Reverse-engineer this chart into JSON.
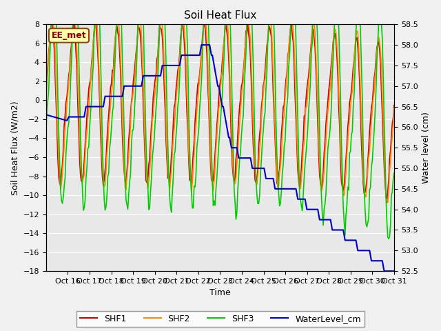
{
  "title": "Soil Heat Flux",
  "ylabel_left": "Soil Heat Flux (W/m2)",
  "ylabel_right": "Water level (cm)",
  "xlabel": "Time",
  "annotation": "EE_met",
  "ylim_left": [
    -18,
    8
  ],
  "ylim_right": [
    52.5,
    58.5
  ],
  "yticks_left": [
    -18,
    -16,
    -14,
    -12,
    -10,
    -8,
    -6,
    -4,
    -2,
    0,
    2,
    4,
    6,
    8
  ],
  "yticks_right": [
    52.5,
    53.0,
    53.5,
    54.0,
    54.5,
    55.0,
    55.5,
    56.0,
    56.5,
    57.0,
    57.5,
    58.0,
    58.5
  ],
  "xtick_positions": [
    1,
    2,
    3,
    4,
    5,
    6,
    7,
    8,
    9,
    10,
    11,
    12,
    13,
    14,
    15,
    16
  ],
  "xtick_labels": [
    "Oct 16",
    "Oct 17",
    "Oct 18",
    "Oct 19",
    "Oct 20",
    "Oct 21",
    "Oct 22",
    "Oct 23",
    "Oct 24",
    "Oct 25",
    "Oct 26",
    "Oct 27",
    "Oct 28",
    "Oct 29",
    "Oct 30",
    "Oct 31"
  ],
  "legend_labels": [
    "SHF1",
    "SHF2",
    "SHF3",
    "WaterLevel_cm"
  ],
  "colors": {
    "SHF1": "#cc0000",
    "SHF2": "#ff8800",
    "SHF3": "#00cc00",
    "WaterLevel_cm": "#0000cc"
  },
  "background_color": "#f0f0f0",
  "plot_bg_color": "#e8e8e8",
  "grid_color": "#ffffff"
}
